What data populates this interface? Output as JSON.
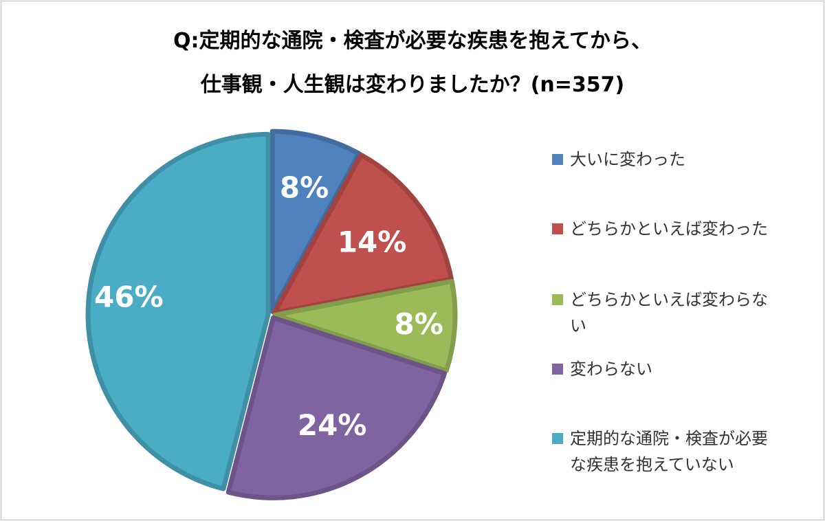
{
  "chart_data": {
    "type": "pie",
    "title": "Q:定期的な通院・検査が必要な疾患を抱えてから、\n仕事観・人生観は変わりましたか？(n=357)",
    "title_lines": [
      "Q:定期的な通院・検査が必要な疾患を抱えてから、",
      "仕事観・人生観は変わりましたか？(n=357)"
    ],
    "start_angle_deg": 0,
    "direction": "clockwise",
    "legend_position": "right",
    "slices": [
      {
        "label": "大いに変わった",
        "legend_text": "大いに変わった",
        "value": 8,
        "display": "8%",
        "color": "#4f81bd"
      },
      {
        "label": "どちらかといえば変わった",
        "legend_text": "どちらかといえば変わった",
        "value": 14,
        "display": "14%",
        "color": "#c0504d"
      },
      {
        "label": "どちらかといえば変わらない",
        "legend_text": "どちらかといえば変わらな\nい",
        "value": 8,
        "display": "8%",
        "color": "#9bbb59"
      },
      {
        "label": "変わらない",
        "legend_text": "変わらない",
        "value": 24,
        "display": "24%",
        "color": "#8064a2"
      },
      {
        "label": "定期的な通院・検査が必要な疾患を抱えていない",
        "legend_text": "定期的な通院・検査が必要\nな疾患を抱えていない",
        "value": 46,
        "display": "46%",
        "color": "#4bacc6"
      }
    ]
  }
}
